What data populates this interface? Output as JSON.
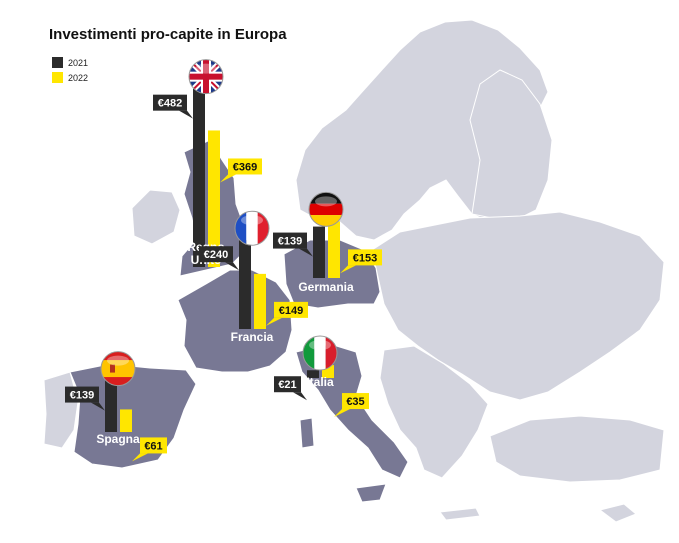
{
  "chart_data": {
    "type": "bar",
    "title": "Investimenti pro-capite in Europa",
    "value_prefix": "€",
    "series": [
      {
        "name": "2021",
        "color": "#2b2b2b"
      },
      {
        "name": "2022",
        "color": "#ffe600"
      }
    ],
    "countries": [
      {
        "name": "Regno Unito",
        "label_lines": [
          "Regno",
          "Unito"
        ],
        "flag": "uk-flag-icon",
        "values": [
          482,
          369
        ]
      },
      {
        "name": "Germania",
        "label_lines": [
          "Germania"
        ],
        "flag": "germany-flag-icon",
        "values": [
          139,
          153
        ]
      },
      {
        "name": "Francia",
        "label_lines": [
          "Francia"
        ],
        "flag": "france-flag-icon",
        "values": [
          240,
          149
        ]
      },
      {
        "name": "Italia",
        "label_lines": [
          "Italia"
        ],
        "flag": "italy-flag-icon",
        "values": [
          21,
          35
        ]
      },
      {
        "name": "Spagna",
        "label_lines": [
          "Spagna"
        ],
        "flag": "spain-flag-icon",
        "values": [
          139,
          61
        ]
      }
    ],
    "colors": {
      "map_land": "#d3d4de",
      "map_highlight": "#787894",
      "map_border": "#ffffff"
    }
  }
}
